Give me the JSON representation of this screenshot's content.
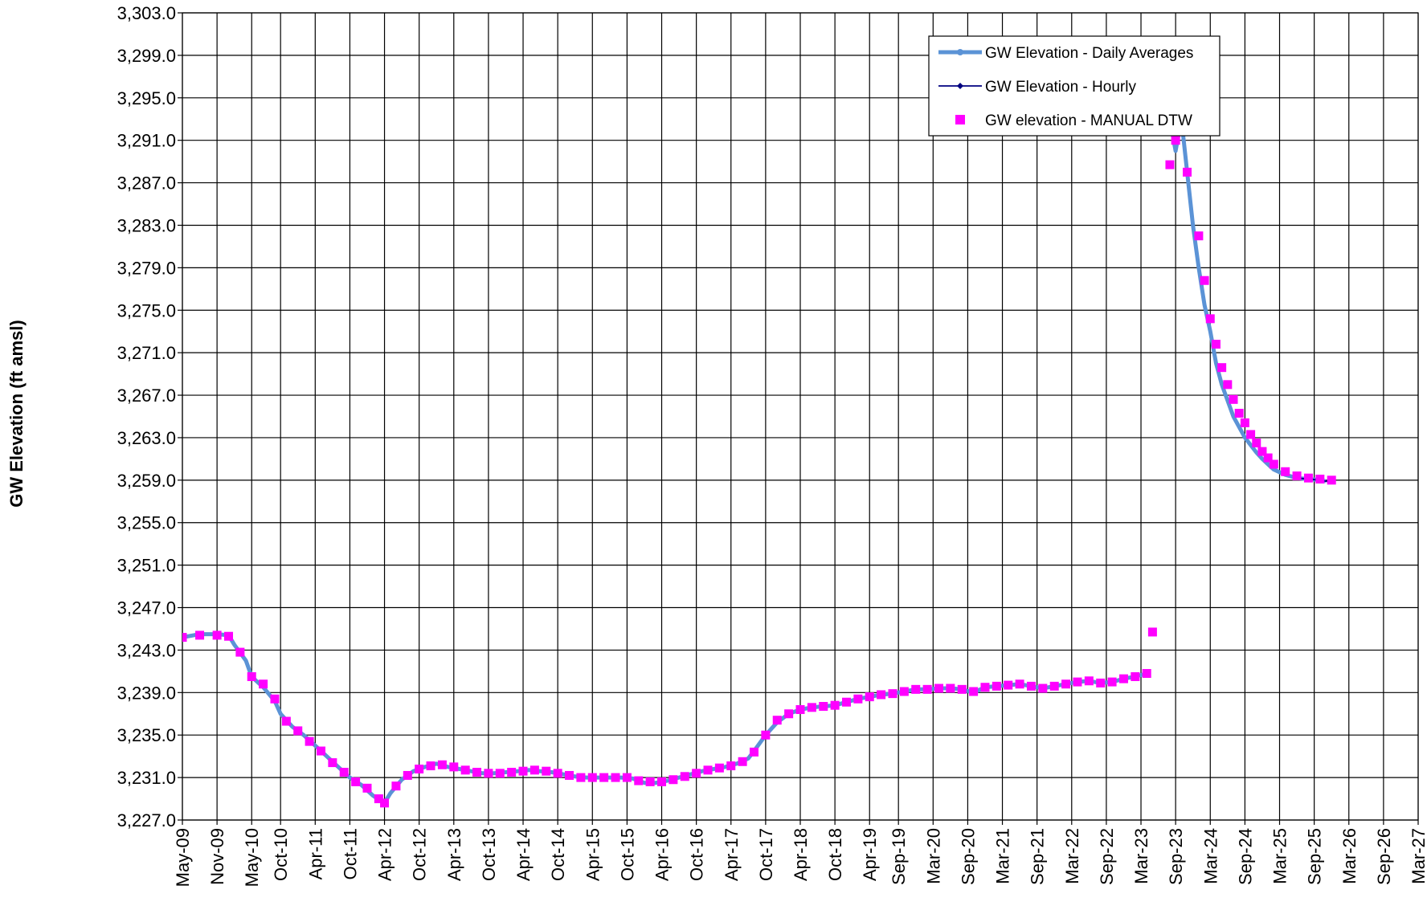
{
  "chart_data": {
    "type": "line",
    "y_label": "GW Elevation (ft amsl)",
    "xlim": [
      "2009-05",
      "2027-03"
    ],
    "xticks": [
      {
        "value": "2009-05",
        "label": "May-09"
      },
      {
        "value": "2009-11",
        "label": "Nov-09"
      },
      {
        "value": "2010-05",
        "label": "May-10"
      },
      {
        "value": "2010-10",
        "label": "Oct-10"
      },
      {
        "value": "2011-04",
        "label": "Apr-11"
      },
      {
        "value": "2011-10",
        "label": "Oct-11"
      },
      {
        "value": "2012-04",
        "label": "Apr-12"
      },
      {
        "value": "2012-10",
        "label": "Oct-12"
      },
      {
        "value": "2013-04",
        "label": "Apr-13"
      },
      {
        "value": "2013-10",
        "label": "Oct-13"
      },
      {
        "value": "2014-04",
        "label": "Apr-14"
      },
      {
        "value": "2014-10",
        "label": "Oct-14"
      },
      {
        "value": "2015-04",
        "label": "Apr-15"
      },
      {
        "value": "2015-10",
        "label": "Oct-15"
      },
      {
        "value": "2016-04",
        "label": "Apr-16"
      },
      {
        "value": "2016-10",
        "label": "Oct-16"
      },
      {
        "value": "2017-04",
        "label": "Apr-17"
      },
      {
        "value": "2017-10",
        "label": "Oct-17"
      },
      {
        "value": "2018-04",
        "label": "Apr-18"
      },
      {
        "value": "2018-10",
        "label": "Oct-18"
      },
      {
        "value": "2019-04",
        "label": "Apr-19"
      },
      {
        "value": "2019-09",
        "label": "Sep-19"
      },
      {
        "value": "2020-03",
        "label": "Mar-20"
      },
      {
        "value": "2020-09",
        "label": "Sep-20"
      },
      {
        "value": "2021-03",
        "label": "Mar-21"
      },
      {
        "value": "2021-09",
        "label": "Sep-21"
      },
      {
        "value": "2022-03",
        "label": "Mar-22"
      },
      {
        "value": "2022-09",
        "label": "Sep-22"
      },
      {
        "value": "2023-03",
        "label": "Mar-23"
      },
      {
        "value": "2023-09",
        "label": "Sep-23"
      },
      {
        "value": "2024-03",
        "label": "Mar-24"
      },
      {
        "value": "2024-09",
        "label": "Sep-24"
      },
      {
        "value": "2025-03",
        "label": "Mar-25"
      },
      {
        "value": "2025-09",
        "label": "Sep-25"
      },
      {
        "value": "2026-03",
        "label": "Mar-26"
      },
      {
        "value": "2026-09",
        "label": "Sep-26"
      },
      {
        "value": "2027-03",
        "label": "Mar-27"
      }
    ],
    "ylim": [
      3227,
      3303
    ],
    "yticks": [
      {
        "value": 3227,
        "label": "3,227.0"
      },
      {
        "value": 3231,
        "label": "3,231.0"
      },
      {
        "value": 3235,
        "label": "3,235.0"
      },
      {
        "value": 3239,
        "label": "3,239.0"
      },
      {
        "value": 3243,
        "label": "3,243.0"
      },
      {
        "value": 3247,
        "label": "3,247.0"
      },
      {
        "value": 3251,
        "label": "3,251.0"
      },
      {
        "value": 3255,
        "label": "3,255.0"
      },
      {
        "value": 3259,
        "label": "3,259.0"
      },
      {
        "value": 3263,
        "label": "3,263.0"
      },
      {
        "value": 3267,
        "label": "3,267.0"
      },
      {
        "value": 3271,
        "label": "3,271.0"
      },
      {
        "value": 3275,
        "label": "3,275.0"
      },
      {
        "value": 3279,
        "label": "3,279.0"
      },
      {
        "value": 3283,
        "label": "3,283.0"
      },
      {
        "value": 3287,
        "label": "3,287.0"
      },
      {
        "value": 3291,
        "label": "3,291.0"
      },
      {
        "value": 3295,
        "label": "3,295.0"
      },
      {
        "value": 3299,
        "label": "3,299.0"
      },
      {
        "value": 3303,
        "label": "3,303.0"
      }
    ],
    "grid": true,
    "legend": "upper right",
    "series": [
      {
        "name": "GW Elevation - Daily Averages",
        "color": "#5b93d6",
        "style": "line",
        "x": [
          "2009-05",
          "2009-08",
          "2009-11",
          "2010-01",
          "2010-02",
          "2010-04",
          "2010-05",
          "2010-07",
          "2010-09",
          "2010-10",
          "2010-12",
          "2011-02",
          "2011-04",
          "2011-06",
          "2011-08",
          "2011-10",
          "2011-12",
          "2012-02",
          "2012-04",
          "2012-05",
          "2012-07",
          "2012-09",
          "2012-11",
          "2013-01",
          "2013-03",
          "2013-05",
          "2013-07",
          "2013-09",
          "2013-11",
          "2014-01",
          "2014-03",
          "2014-05",
          "2014-07",
          "2014-09",
          "2014-11",
          "2015-01",
          "2015-03",
          "2015-05",
          "2015-07",
          "2015-09",
          "2015-11",
          "2016-01",
          "2016-03",
          "2016-05",
          "2016-07",
          "2016-09",
          "2016-11",
          "2017-01",
          "2017-03",
          "2017-05",
          "2017-07",
          "2017-08",
          "2017-10",
          "2017-12",
          "2018-02",
          "2018-04",
          "2018-06",
          "2018-08",
          "2018-10",
          "2018-12",
          "2019-02",
          "2019-04",
          "2019-06",
          "2019-08",
          "2019-10",
          "2019-12",
          "2020-02",
          "2020-04",
          "2020-06",
          "2020-08",
          "2020-10",
          "2020-12",
          "2021-02",
          "2021-04",
          "2021-06",
          "2021-08",
          "2021-10",
          "2021-12",
          "2022-02",
          "2022-04",
          "2022-06",
          "2022-08",
          "2022-10",
          "2022-12",
          "2023-02",
          "2023-04",
          "2023-06",
          "2023-08",
          "2023-09",
          "2023-10",
          "2023-11",
          "2023-12",
          "2024-01",
          "2024-02",
          "2024-03",
          "2024-04",
          "2024-05",
          "2024-06",
          "2024-07",
          "2024-08",
          "2024-09",
          "2024-10",
          "2024-11",
          "2024-12",
          "2025-01",
          "2025-02",
          "2025-04",
          "2025-06",
          "2025-08",
          "2025-10",
          "2025-11"
        ],
        "values": [
          3244.2,
          3244.5,
          3244.5,
          3244.4,
          3243.5,
          3242.0,
          3240.5,
          3239.5,
          3238.2,
          3237.0,
          3235.8,
          3235.0,
          3234.0,
          3233.0,
          3232.0,
          3231.0,
          3230.3,
          3229.3,
          3228.6,
          3229.5,
          3230.8,
          3231.6,
          3232.0,
          3232.3,
          3232.0,
          3231.8,
          3231.6,
          3231.4,
          3231.4,
          3231.5,
          3231.6,
          3231.7,
          3231.6,
          3231.5,
          3231.3,
          3231.1,
          3231.0,
          3231.0,
          3231.0,
          3231.0,
          3230.9,
          3230.5,
          3230.5,
          3230.7,
          3231.0,
          3231.3,
          3231.6,
          3231.8,
          3232.0,
          3232.3,
          3232.8,
          3233.5,
          3235.0,
          3236.2,
          3237.0,
          3237.4,
          3237.6,
          3237.7,
          3237.8,
          3238.1,
          3238.4,
          3238.6,
          3238.8,
          3238.9,
          3239.1,
          3239.3,
          3239.3,
          3239.4,
          3239.4,
          3239.3,
          3239.0,
          3239.5,
          3239.6,
          3239.7,
          3239.8,
          3239.6,
          3239.4,
          3239.6,
          3239.8,
          3240.0,
          3240.1,
          3239.9,
          3240.0,
          3240.3,
          3240.5,
          3240.8,
          null,
          3293.0,
          3290.0,
          3293.0,
          3288.0,
          3283.0,
          3279.0,
          3275.5,
          3273.0,
          3270.0,
          3268.0,
          3266.5,
          3265.0,
          3264.0,
          3263.0,
          3262.3,
          3261.6,
          3261.0,
          3260.5,
          3260.0,
          3259.5,
          3259.2,
          3259.1,
          3259.0,
          3258.9
        ]
      },
      {
        "name": "GW Elevation - Hourly",
        "color": "#000080",
        "style": "thin",
        "x": [
          "2025-06",
          "2025-08",
          "2025-10",
          "2025-12"
        ],
        "values": [
          3259.2,
          3259.1,
          3259.0,
          3258.8
        ]
      },
      {
        "name": "GW elevation - MANUAL DTW",
        "color": "#ff00ff",
        "style": "square",
        "x": [
          "2009-05",
          "2009-08",
          "2009-11",
          "2010-01",
          "2010-03",
          "2010-05",
          "2010-07",
          "2010-09",
          "2010-11",
          "2011-01",
          "2011-03",
          "2011-05",
          "2011-07",
          "2011-09",
          "2011-11",
          "2012-01",
          "2012-03",
          "2012-04",
          "2012-06",
          "2012-08",
          "2012-10",
          "2012-12",
          "2013-02",
          "2013-04",
          "2013-06",
          "2013-08",
          "2013-10",
          "2013-12",
          "2014-02",
          "2014-04",
          "2014-06",
          "2014-08",
          "2014-10",
          "2014-12",
          "2015-02",
          "2015-04",
          "2015-06",
          "2015-08",
          "2015-10",
          "2015-12",
          "2016-02",
          "2016-04",
          "2016-06",
          "2016-08",
          "2016-10",
          "2016-12",
          "2017-02",
          "2017-04",
          "2017-06",
          "2017-08",
          "2017-10",
          "2017-12",
          "2018-02",
          "2018-04",
          "2018-06",
          "2018-08",
          "2018-10",
          "2018-12",
          "2019-02",
          "2019-04",
          "2019-06",
          "2019-08",
          "2019-10",
          "2019-12",
          "2020-02",
          "2020-04",
          "2020-06",
          "2020-08",
          "2020-10",
          "2020-12",
          "2021-02",
          "2021-04",
          "2021-06",
          "2021-08",
          "2021-10",
          "2021-12",
          "2022-02",
          "2022-04",
          "2022-06",
          "2022-08",
          "2022-10",
          "2022-12",
          "2023-02",
          "2023-04",
          "2023-05",
          "2023-08",
          "2023-09",
          "2023-11",
          "2024-01",
          "2024-02",
          "2024-03",
          "2024-04",
          "2024-05",
          "2024-06",
          "2024-07",
          "2024-08",
          "2024-09",
          "2024-10",
          "2024-11",
          "2024-12",
          "2025-01",
          "2025-02",
          "2025-04",
          "2025-06",
          "2025-08",
          "2025-10",
          "2025-12"
        ],
        "values": [
          3244.2,
          3244.4,
          3244.4,
          3244.3,
          3242.8,
          3240.5,
          3239.8,
          3238.4,
          3236.3,
          3235.4,
          3234.4,
          3233.5,
          3232.4,
          3231.5,
          3230.6,
          3230.0,
          3229.0,
          3228.6,
          3230.2,
          3231.2,
          3231.8,
          3232.1,
          3232.2,
          3232.0,
          3231.7,
          3231.5,
          3231.4,
          3231.4,
          3231.5,
          3231.6,
          3231.7,
          3231.6,
          3231.4,
          3231.2,
          3231.0,
          3231.0,
          3231.0,
          3231.0,
          3231.0,
          3230.7,
          3230.6,
          3230.6,
          3230.8,
          3231.1,
          3231.4,
          3231.7,
          3231.9,
          3232.1,
          3232.5,
          3233.4,
          3235.0,
          3236.4,
          3237.0,
          3237.4,
          3237.6,
          3237.7,
          3237.8,
          3238.1,
          3238.4,
          3238.6,
          3238.8,
          3238.9,
          3239.1,
          3239.3,
          3239.3,
          3239.4,
          3239.4,
          3239.3,
          3239.1,
          3239.5,
          3239.6,
          3239.7,
          3239.8,
          3239.6,
          3239.4,
          3239.6,
          3239.8,
          3240.0,
          3240.1,
          3239.9,
          3240.0,
          3240.3,
          3240.5,
          3240.8,
          3244.7,
          3288.7,
          3291.0,
          3288.0,
          3282.0,
          3277.8,
          3274.2,
          3271.8,
          3269.6,
          3268.0,
          3266.6,
          3265.3,
          3264.4,
          3263.3,
          3262.5,
          3261.7,
          3261.1,
          3260.5,
          3259.8,
          3259.4,
          3259.2,
          3259.1,
          3259.0
        ]
      }
    ]
  }
}
